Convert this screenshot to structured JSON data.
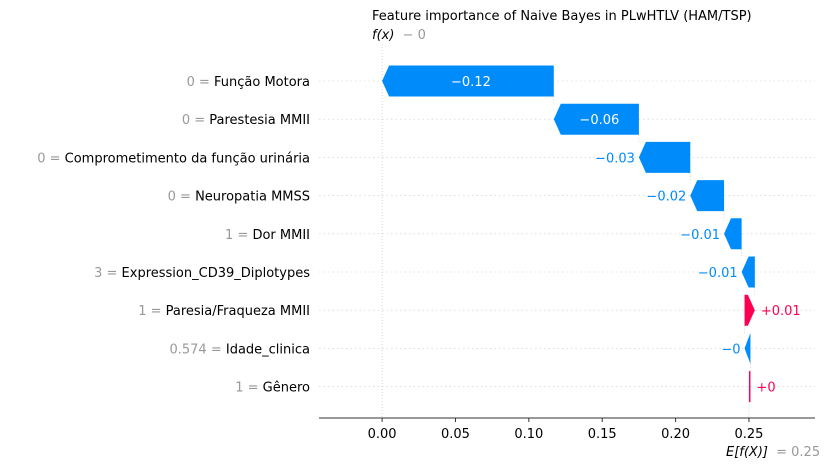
{
  "chart_data": {
    "type": "waterfall",
    "title": "Feature importance of Naive Bayes in PLwHTLV (HAM/TSP)",
    "fx_label": "f(x)",
    "fx_value": "− 0",
    "efx_label": "E[f(X)]",
    "efx_value": "= 0.25",
    "base_value": 0.25,
    "xlim": [
      -0.043,
      0.295
    ],
    "ticks": [
      0.0,
      0.05,
      0.1,
      0.15,
      0.2,
      0.25
    ],
    "tick_labels": [
      "0.00",
      "0.05",
      "0.10",
      "0.15",
      "0.20",
      "0.25"
    ],
    "colors": {
      "negative": "#008bfb",
      "positive": "#ff0051",
      "gray": "#999999"
    },
    "features": [
      {
        "value": "0",
        "name": "Função Motora",
        "contribution": -0.117,
        "label": "−0.12"
      },
      {
        "value": "0",
        "name": "Parestesia MMII",
        "contribution": -0.058,
        "label": "−0.06"
      },
      {
        "value": "0",
        "name": "Comprometimento da função urinária",
        "contribution": -0.035,
        "label": "−0.03"
      },
      {
        "value": "0",
        "name": "Neuropatia MMSS",
        "contribution": -0.023,
        "label": "−0.02"
      },
      {
        "value": "1",
        "name": "Dor MMII",
        "contribution": -0.012,
        "label": "−0.01"
      },
      {
        "value": "3",
        "name": "Expression_CD39_Diplotypes",
        "contribution": -0.009,
        "label": "−0.01"
      },
      {
        "value": "1",
        "name": "Paresia/Fraqueza MMII",
        "contribution": 0.007,
        "label": "+0.01"
      },
      {
        "value": "0.574",
        "name": "Idade_clinica",
        "contribution": -0.004,
        "label": "−0"
      },
      {
        "value": "1",
        "name": "Gênero",
        "contribution": 0.001,
        "label": "+0"
      }
    ]
  }
}
